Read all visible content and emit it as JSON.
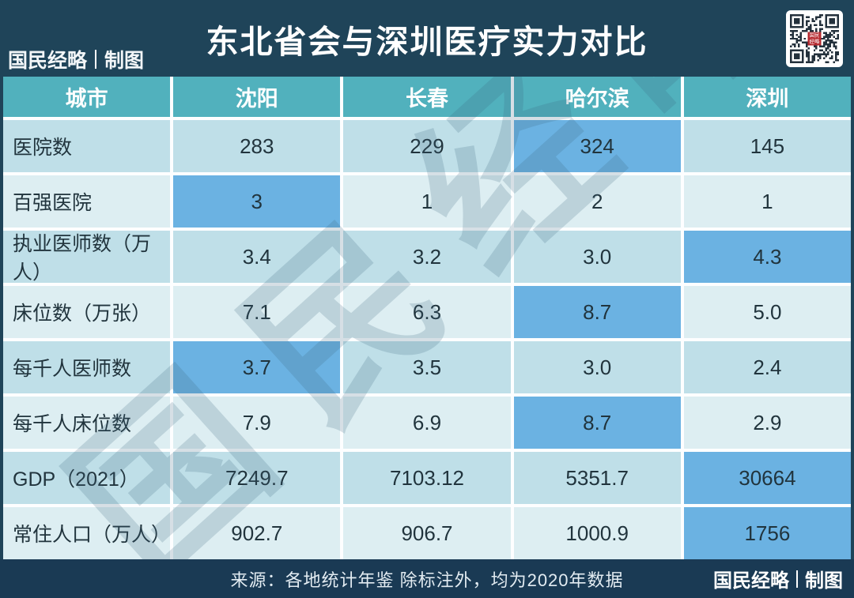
{
  "page": {
    "title": "东北省会与深圳医疗实力对比",
    "brand": "国民经略",
    "brand_suffix": "制图",
    "watermark": "国民经略",
    "qr_seal": "国民经略",
    "source_note": "来源：各地统计年鉴 除标注外，均为2020年数据"
  },
  "chart_data": {
    "type": "table",
    "title": "东北省会与深圳医疗实力对比",
    "columns": [
      "城市",
      "沈阳",
      "长春",
      "哈尔滨",
      "深圳"
    ],
    "rows": [
      {
        "label": "医院数",
        "values": [
          "283",
          "229",
          "324",
          "145"
        ],
        "highlight": 2
      },
      {
        "label": "百强医院",
        "values": [
          "3",
          "1",
          "2",
          "1"
        ],
        "highlight": 0
      },
      {
        "label": "执业医师数（万人）",
        "values": [
          "3.4",
          "3.2",
          "3.0",
          "4.3"
        ],
        "highlight": 3
      },
      {
        "label": "床位数（万张）",
        "values": [
          "7.1",
          "6.3",
          "8.7",
          "5.0"
        ],
        "highlight": 2
      },
      {
        "label": "每千人医师数",
        "values": [
          "3.7",
          "3.5",
          "3.0",
          "2.4"
        ],
        "highlight": 0
      },
      {
        "label": "每千人床位数",
        "values": [
          "7.9",
          "6.9",
          "8.7",
          "2.9"
        ],
        "highlight": 2
      },
      {
        "label": "GDP（2021）",
        "values": [
          "7249.7",
          "7103.12",
          "5351.7",
          "30664"
        ],
        "highlight": 3
      },
      {
        "label": "常住人口（万人）",
        "values": [
          "902.7",
          "906.7",
          "1000.9",
          "1756"
        ],
        "highlight": 3
      }
    ]
  },
  "colors": {
    "banner_navy": "#1f4459",
    "footer_navy": "#1a3a54",
    "header_teal": "#51b1bd",
    "row_dark": "#bfdfe8",
    "row_light": "#ddeef2",
    "highlight_blue": "#6bb2e2",
    "cell_text": "#21343d",
    "qr_seal_red": "#b5282e"
  }
}
